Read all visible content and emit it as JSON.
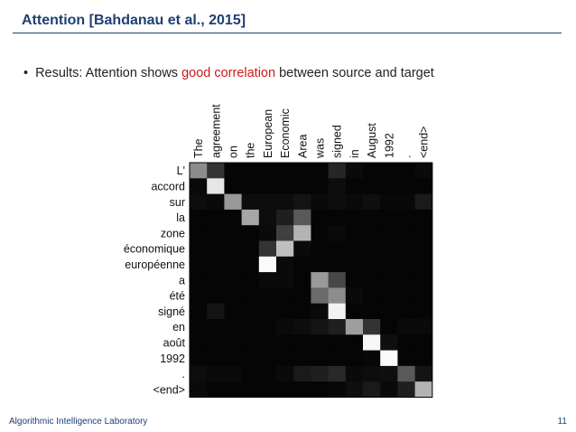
{
  "slide": {
    "title": "Attention [Bahdanau et al., 2015]",
    "bullet_prefix": "Results: Attention shows ",
    "bullet_highlight": "good correlation",
    "bullet_suffix": " between source and target",
    "footer_left": "Algorithmic Intelligence Laboratory",
    "page_number": "11"
  },
  "colors": {
    "title": "#1f3f73",
    "highlight": "#d01818"
  },
  "chart_data": {
    "type": "heatmap",
    "x_labels": [
      "The",
      "agreement",
      "on",
      "the",
      "European",
      "Economic",
      "Area",
      "was",
      "signed",
      "in",
      "August",
      "1992",
      ".",
      "<end>"
    ],
    "y_labels": [
      "L'",
      "accord",
      "sur",
      "la",
      "zone",
      "économique",
      "européenne",
      "a",
      "été",
      "signé",
      "en",
      "août",
      "1992",
      ".",
      "<end>"
    ],
    "values": [
      [
        0.55,
        0.2,
        0.02,
        0.02,
        0.02,
        0.02,
        0.02,
        0.02,
        0.15,
        0.04,
        0.02,
        0.02,
        0.02,
        0.04
      ],
      [
        0.04,
        0.9,
        0.02,
        0.02,
        0.02,
        0.02,
        0.02,
        0.02,
        0.05,
        0.02,
        0.02,
        0.02,
        0.02,
        0.02
      ],
      [
        0.05,
        0.04,
        0.6,
        0.05,
        0.05,
        0.05,
        0.08,
        0.04,
        0.05,
        0.04,
        0.06,
        0.03,
        0.03,
        0.1
      ],
      [
        0.02,
        0.02,
        0.02,
        0.65,
        0.05,
        0.12,
        0.35,
        0.02,
        0.02,
        0.02,
        0.02,
        0.02,
        0.02,
        0.02
      ],
      [
        0.02,
        0.02,
        0.02,
        0.02,
        0.04,
        0.25,
        0.7,
        0.02,
        0.04,
        0.02,
        0.02,
        0.02,
        0.02,
        0.02
      ],
      [
        0.02,
        0.02,
        0.02,
        0.02,
        0.2,
        0.75,
        0.04,
        0.02,
        0.02,
        0.02,
        0.02,
        0.02,
        0.02,
        0.02
      ],
      [
        0.02,
        0.02,
        0.02,
        0.02,
        0.98,
        0.04,
        0.02,
        0.02,
        0.02,
        0.02,
        0.02,
        0.02,
        0.02,
        0.02
      ],
      [
        0.02,
        0.02,
        0.02,
        0.02,
        0.04,
        0.04,
        0.02,
        0.6,
        0.28,
        0.02,
        0.02,
        0.02,
        0.02,
        0.02
      ],
      [
        0.02,
        0.02,
        0.02,
        0.02,
        0.02,
        0.02,
        0.02,
        0.42,
        0.55,
        0.04,
        0.02,
        0.02,
        0.02,
        0.02
      ],
      [
        0.02,
        0.08,
        0.02,
        0.02,
        0.02,
        0.02,
        0.02,
        0.04,
        0.95,
        0.02,
        0.02,
        0.02,
        0.02,
        0.02
      ],
      [
        0.02,
        0.02,
        0.02,
        0.02,
        0.02,
        0.04,
        0.05,
        0.08,
        0.12,
        0.62,
        0.2,
        0.02,
        0.04,
        0.04
      ],
      [
        0.02,
        0.02,
        0.02,
        0.02,
        0.02,
        0.02,
        0.02,
        0.02,
        0.02,
        0.02,
        0.97,
        0.06,
        0.02,
        0.02
      ],
      [
        0.02,
        0.02,
        0.02,
        0.02,
        0.02,
        0.02,
        0.02,
        0.02,
        0.02,
        0.02,
        0.03,
        0.98,
        0.02,
        0.02
      ],
      [
        0.05,
        0.04,
        0.04,
        0.02,
        0.02,
        0.04,
        0.1,
        0.12,
        0.16,
        0.04,
        0.05,
        0.06,
        0.35,
        0.08
      ],
      [
        0.04,
        0.02,
        0.02,
        0.02,
        0.02,
        0.02,
        0.02,
        0.02,
        0.03,
        0.06,
        0.1,
        0.04,
        0.12,
        0.7
      ]
    ]
  }
}
